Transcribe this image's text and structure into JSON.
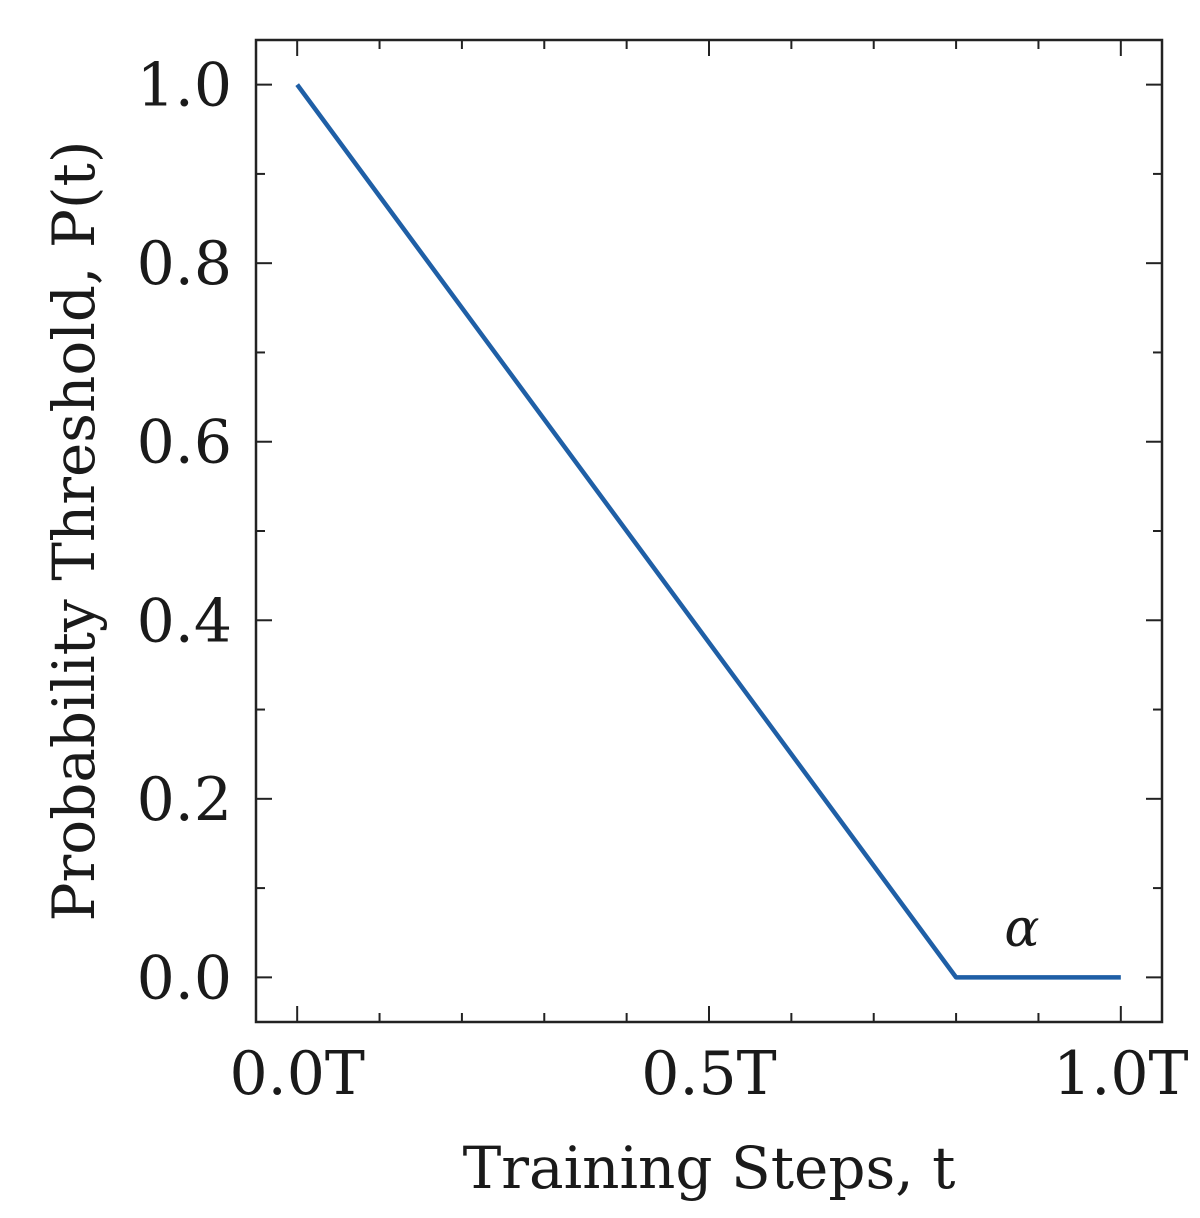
{
  "chart_data": {
    "type": "line",
    "title": "",
    "xlabel": "Training Steps, t",
    "ylabel": "Probability Threshold, P(t)",
    "xlim": [
      -0.05,
      1.05
    ],
    "ylim": [
      -0.05,
      1.05
    ],
    "x_ticks": [
      0.0,
      0.5,
      1.0
    ],
    "x_tick_labels": [
      "0.0T",
      "0.5T",
      "1.0T"
    ],
    "x_minor_step": 0.1,
    "y_ticks": [
      0.0,
      0.2,
      0.4,
      0.6,
      0.8,
      1.0
    ],
    "y_tick_labels": [
      "0.0",
      "0.2",
      "0.4",
      "0.6",
      "0.8",
      "1.0"
    ],
    "y_minor_step": 0.1,
    "grid": false,
    "series": [
      {
        "color": "#1f5fa6",
        "x": [
          0.0,
          0.8,
          1.0
        ],
        "y": [
          1.0,
          0.0,
          0.0
        ]
      }
    ],
    "annotations": [
      {
        "text": "α",
        "x": 0.88,
        "y": 0.035
      }
    ]
  }
}
